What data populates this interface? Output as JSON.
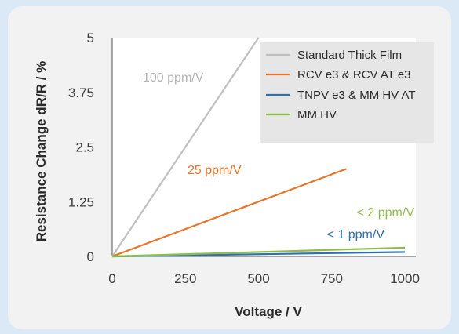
{
  "chart_data": {
    "type": "line",
    "title": "",
    "xlabel": "Voltage / V",
    "ylabel": "Resistance Change dR/R / %",
    "xlim": [
      0,
      1000
    ],
    "ylim": [
      0,
      5
    ],
    "xticks": [
      "0",
      "250",
      "500",
      "750",
      "1000"
    ],
    "yticks": [
      "0",
      "1.25",
      "2.5",
      "3.75",
      "5"
    ],
    "grid": false,
    "legend_position": "top-right",
    "series": [
      {
        "name": "Standard Thick Film",
        "color": "#bfbfbf",
        "x": [
          0,
          500
        ],
        "y": [
          0,
          5
        ]
      },
      {
        "name": "RCV e3 & RCV AT e3",
        "color": "#e8742a",
        "x": [
          0,
          800
        ],
        "y": [
          0,
          2
        ]
      },
      {
        "name": "TNPV e3 & MM HV AT",
        "color": "#2e6fae",
        "x": [
          0,
          1000
        ],
        "y": [
          0,
          0.1
        ]
      },
      {
        "name": "MM HV",
        "color": "#8dbd4a",
        "x": [
          0,
          1000
        ],
        "y": [
          0,
          0.2
        ]
      }
    ],
    "annotations": [
      {
        "text": "100 ppm/V",
        "color": "#b5b5b5"
      },
      {
        "text": "25 ppm/V",
        "color": "#e8742a"
      },
      {
        "text": "< 2 ppm/V",
        "color": "#8dbd4a"
      },
      {
        "text": "< 1 ppm/V",
        "color": "#2e6fae"
      }
    ]
  }
}
